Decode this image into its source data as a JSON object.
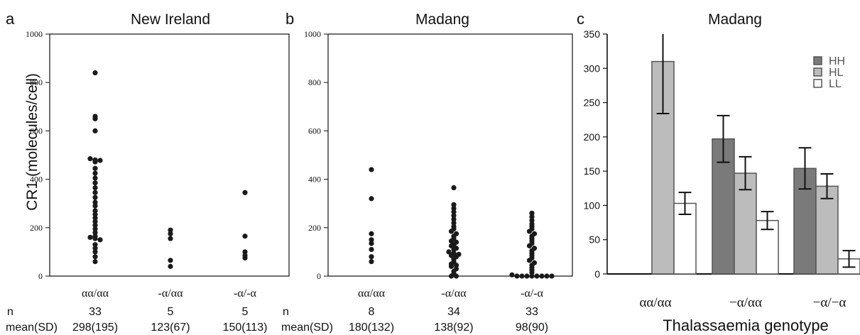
{
  "shared": {
    "ylabel": "CR1 (molecules/cell)",
    "n_label": "n",
    "mean_label": "mean(SD)"
  },
  "chart_data": [
    {
      "type": "scatter",
      "panel_letter": "a",
      "title": "New Ireland",
      "ylim": [
        0,
        1000
      ],
      "yticks": [
        0,
        200,
        400,
        600,
        800,
        1000
      ],
      "categories": [
        "αα/αα",
        "-α/αα",
        "-α/-α"
      ],
      "n": [
        "33",
        "5",
        "5"
      ],
      "mean_sd": [
        "298(195)",
        "123(67)",
        "150(113)"
      ],
      "points": [
        [
          840,
          660,
          650,
          600,
          485,
          480,
          478,
          472,
          445,
          425,
          405,
          385,
          365,
          345,
          325,
          305,
          290,
          270,
          255,
          240,
          225,
          210,
          195,
          180,
          165,
          160,
          155,
          150,
          130,
          115,
          100,
          80,
          60
        ],
        [
          190,
          175,
          155,
          65,
          40
        ],
        [
          345,
          165,
          100,
          85,
          75
        ]
      ]
    },
    {
      "type": "scatter",
      "panel_letter": "b",
      "title": "Madang",
      "ylim": [
        0,
        1000
      ],
      "yticks": [
        0,
        200,
        400,
        600,
        800,
        1000
      ],
      "categories": [
        "αα/αα",
        "-α/αα",
        "-α/-α"
      ],
      "n": [
        "8",
        "34",
        "33"
      ],
      "mean_sd": [
        "180(132)",
        "138(92)",
        "98(90)"
      ],
      "points": [
        [
          440,
          320,
          175,
          150,
          135,
          110,
          80,
          60
        ],
        [
          365,
          295,
          280,
          265,
          250,
          235,
          220,
          205,
          195,
          185,
          175,
          165,
          155,
          145,
          140,
          130,
          125,
          115,
          110,
          100,
          95,
          90,
          85,
          80,
          70,
          60,
          50,
          45,
          40,
          30,
          20,
          10,
          0,
          0
        ],
        [
          260,
          245,
          230,
          215,
          205,
          195,
          185,
          175,
          165,
          155,
          145,
          135,
          125,
          115,
          105,
          95,
          85,
          75,
          65,
          55,
          45,
          35,
          25,
          15,
          5,
          0,
          0,
          0,
          0,
          0,
          0,
          0,
          0
        ]
      ]
    },
    {
      "type": "bar",
      "panel_letter": "c",
      "title": "Madang",
      "xlabel": "Thalassaemia genotype",
      "ylim": [
        0,
        350
      ],
      "yticks": [
        0,
        50,
        100,
        150,
        200,
        250,
        300,
        350
      ],
      "categories": [
        "αα/αα",
        "−α/αα",
        "−α/−α"
      ],
      "series": [
        {
          "name": "HH",
          "color": "#7a7a7a",
          "values": [
            null,
            197,
            154
          ],
          "err": [
            null,
            34,
            30
          ]
        },
        {
          "name": "HL",
          "color": "#bcbcbc",
          "values": [
            310,
            147,
            128
          ],
          "err": [
            76,
            24,
            18
          ]
        },
        {
          "name": "LL",
          "color": "#ffffff",
          "values": [
            103,
            78,
            22
          ],
          "err": [
            16,
            13,
            12
          ]
        }
      ]
    }
  ]
}
